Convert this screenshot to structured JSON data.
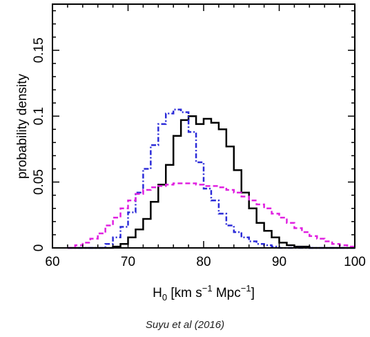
{
  "caption": "Suyu et al (2016)",
  "chart_data": {
    "type": "histogram",
    "title": "",
    "xlabel": {
      "base": "H",
      "sub": "0",
      "rest": " [km s",
      "sup1": "−1",
      "mid": " Mpc",
      "sup2": "−1",
      "end": "]"
    },
    "ylabel": "probability density",
    "xlim": [
      60,
      100
    ],
    "ylim": [
      0,
      0.185
    ],
    "xticks": [
      60,
      70,
      80,
      90,
      100
    ],
    "yticks": [
      0,
      0.05,
      0.1,
      0.15
    ],
    "yticklabels": [
      "0",
      "0.05",
      "0.1",
      "0.15"
    ],
    "bin_edges": [
      62,
      63,
      64,
      65,
      66,
      67,
      68,
      69,
      70,
      71,
      72,
      73,
      74,
      75,
      76,
      77,
      78,
      79,
      80,
      81,
      82,
      83,
      84,
      85,
      86,
      87,
      88,
      89,
      90,
      91,
      92,
      93,
      94,
      95,
      96,
      97,
      98,
      99,
      100
    ],
    "series": [
      {
        "style": "solid",
        "color": "#000000",
        "values": [
          0,
          0,
          0,
          0,
          0,
          0,
          0.001,
          0.003,
          0.008,
          0.014,
          0.022,
          0.035,
          0.048,
          0.063,
          0.085,
          0.097,
          0.1,
          0.094,
          0.098,
          0.095,
          0.09,
          0.077,
          0.059,
          0.042,
          0.03,
          0.019,
          0.013,
          0.008,
          0.004,
          0.002,
          0.001,
          0.001,
          0,
          0,
          0,
          0,
          0,
          0
        ]
      },
      {
        "style": "dash-dot",
        "color": "#2b2bd8",
        "values": [
          0,
          0,
          0,
          0,
          0,
          0.003,
          0.008,
          0.016,
          0.027,
          0.042,
          0.06,
          0.078,
          0.094,
          0.102,
          0.105,
          0.103,
          0.088,
          0.065,
          0.045,
          0.036,
          0.026,
          0.017,
          0.012,
          0.008,
          0.005,
          0.003,
          0.002,
          0.001,
          0,
          0,
          0,
          0,
          0,
          0,
          0,
          0,
          0,
          0
        ]
      },
      {
        "style": "dashed",
        "color": "#e020e0",
        "values": [
          0,
          0.002,
          0.004,
          0.007,
          0.011,
          0.017,
          0.023,
          0.03,
          0.036,
          0.041,
          0.044,
          0.046,
          0.047,
          0.048,
          0.049,
          0.049,
          0.049,
          0.048,
          0.047,
          0.047,
          0.046,
          0.044,
          0.042,
          0.039,
          0.036,
          0.033,
          0.03,
          0.026,
          0.023,
          0.019,
          0.015,
          0.012,
          0.009,
          0.007,
          0.005,
          0.003,
          0.002,
          0.001
        ]
      }
    ]
  }
}
